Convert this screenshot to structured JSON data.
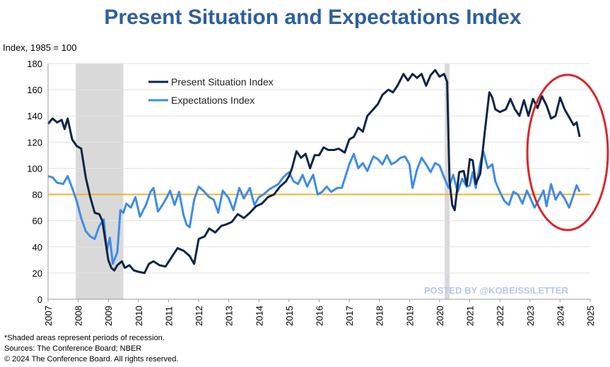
{
  "chart_data": {
    "type": "line",
    "title": "Present Situation and Expectations Index",
    "ylabel": "Index, 1985 = 100",
    "xlabel": "",
    "ylim": [
      0,
      180
    ],
    "xlim": [
      2007,
      2025
    ],
    "yticks": [
      0,
      20,
      40,
      60,
      80,
      100,
      120,
      140,
      160,
      180
    ],
    "xticks": [
      "2007",
      "2008",
      "2009",
      "2010",
      "2011",
      "2012",
      "2013",
      "2014",
      "2015",
      "2016",
      "2017",
      "2018",
      "2019",
      "2020",
      "2021",
      "2022",
      "2023",
      "2024",
      "2025"
    ],
    "grid": "horizontal",
    "legend": "top-left",
    "reference_line": {
      "y": 80,
      "color": "#f0b030"
    },
    "recessions": [
      {
        "start": 2007.92,
        "end": 2009.5
      },
      {
        "start": 2020.17,
        "end": 2020.33
      }
    ],
    "series": [
      {
        "name": "Present Situation Index",
        "color": "#0f2547",
        "points": [
          [
            2007.0,
            134
          ],
          [
            2007.15,
            138
          ],
          [
            2007.3,
            135
          ],
          [
            2007.45,
            137
          ],
          [
            2007.55,
            130
          ],
          [
            2007.65,
            138
          ],
          [
            2007.8,
            122
          ],
          [
            2007.95,
            117
          ],
          [
            2008.1,
            115
          ],
          [
            2008.25,
            93
          ],
          [
            2008.4,
            78
          ],
          [
            2008.55,
            66
          ],
          [
            2008.7,
            65
          ],
          [
            2008.8,
            60
          ],
          [
            2008.9,
            45
          ],
          [
            2009.0,
            30
          ],
          [
            2009.1,
            24
          ],
          [
            2009.2,
            22
          ],
          [
            2009.3,
            26
          ],
          [
            2009.45,
            29
          ],
          [
            2009.55,
            24
          ],
          [
            2009.7,
            26
          ],
          [
            2009.85,
            22
          ],
          [
            2010.0,
            21
          ],
          [
            2010.2,
            20
          ],
          [
            2010.35,
            27
          ],
          [
            2010.5,
            29
          ],
          [
            2010.7,
            26
          ],
          [
            2010.9,
            25
          ],
          [
            2011.1,
            32
          ],
          [
            2011.3,
            39
          ],
          [
            2011.5,
            37
          ],
          [
            2011.7,
            33
          ],
          [
            2011.85,
            27
          ],
          [
            2012.0,
            46
          ],
          [
            2012.2,
            48
          ],
          [
            2012.35,
            54
          ],
          [
            2012.55,
            51
          ],
          [
            2012.75,
            56
          ],
          [
            2012.9,
            57
          ],
          [
            2013.1,
            59
          ],
          [
            2013.3,
            65
          ],
          [
            2013.5,
            62
          ],
          [
            2013.7,
            66
          ],
          [
            2013.9,
            71
          ],
          [
            2014.1,
            73
          ],
          [
            2014.3,
            78
          ],
          [
            2014.5,
            80
          ],
          [
            2014.7,
            86
          ],
          [
            2014.9,
            90
          ],
          [
            2015.0,
            94
          ],
          [
            2015.1,
            100
          ],
          [
            2015.25,
            113
          ],
          [
            2015.4,
            108
          ],
          [
            2015.55,
            111
          ],
          [
            2015.7,
            100
          ],
          [
            2015.85,
            110
          ],
          [
            2016.0,
            110
          ],
          [
            2016.15,
            116
          ],
          [
            2016.3,
            114
          ],
          [
            2016.5,
            114
          ],
          [
            2016.65,
            115
          ],
          [
            2016.85,
            112
          ],
          [
            2017.0,
            122
          ],
          [
            2017.15,
            124
          ],
          [
            2017.3,
            131
          ],
          [
            2017.45,
            128
          ],
          [
            2017.6,
            140
          ],
          [
            2017.8,
            145
          ],
          [
            2017.95,
            149
          ],
          [
            2018.1,
            156
          ],
          [
            2018.3,
            160
          ],
          [
            2018.45,
            158
          ],
          [
            2018.6,
            163
          ],
          [
            2018.8,
            172
          ],
          [
            2018.95,
            167
          ],
          [
            2019.1,
            172
          ],
          [
            2019.25,
            169
          ],
          [
            2019.4,
            172
          ],
          [
            2019.55,
            163
          ],
          [
            2019.7,
            171
          ],
          [
            2019.85,
            175
          ],
          [
            2020.0,
            170
          ],
          [
            2020.15,
            172
          ],
          [
            2020.25,
            166
          ],
          [
            2020.33,
            90
          ],
          [
            2020.42,
            72
          ],
          [
            2020.5,
            68
          ],
          [
            2020.65,
            97
          ],
          [
            2020.8,
            98
          ],
          [
            2020.9,
            87
          ],
          [
            2021.0,
            107
          ],
          [
            2021.1,
            106
          ],
          [
            2021.2,
            88
          ],
          [
            2021.35,
            96
          ],
          [
            2021.5,
            128
          ],
          [
            2021.65,
            158
          ],
          [
            2021.75,
            154
          ],
          [
            2021.85,
            145
          ],
          [
            2022.0,
            143
          ],
          [
            2022.2,
            145
          ],
          [
            2022.35,
            153
          ],
          [
            2022.5,
            145
          ],
          [
            2022.65,
            140
          ],
          [
            2022.8,
            152
          ],
          [
            2022.95,
            140
          ],
          [
            2023.1,
            153
          ],
          [
            2023.25,
            146
          ],
          [
            2023.4,
            155
          ],
          [
            2023.55,
            148
          ],
          [
            2023.7,
            138
          ],
          [
            2023.85,
            140
          ],
          [
            2024.0,
            154
          ],
          [
            2024.15,
            145
          ],
          [
            2024.3,
            139
          ],
          [
            2024.45,
            133
          ],
          [
            2024.55,
            135
          ],
          [
            2024.65,
            124
          ]
        ]
      },
      {
        "name": "Expectations Index",
        "color": "#3d8ce8",
        "points": [
          [
            2007.0,
            94
          ],
          [
            2007.15,
            93
          ],
          [
            2007.3,
            89
          ],
          [
            2007.5,
            88
          ],
          [
            2007.65,
            94
          ],
          [
            2007.8,
            85
          ],
          [
            2007.95,
            75
          ],
          [
            2008.1,
            62
          ],
          [
            2008.25,
            52
          ],
          [
            2008.4,
            48
          ],
          [
            2008.55,
            46
          ],
          [
            2008.7,
            56
          ],
          [
            2008.85,
            61
          ],
          [
            2008.95,
            37
          ],
          [
            2009.05,
            47
          ],
          [
            2009.15,
            27
          ],
          [
            2009.3,
            36
          ],
          [
            2009.4,
            68
          ],
          [
            2009.5,
            66
          ],
          [
            2009.6,
            73
          ],
          [
            2009.75,
            70
          ],
          [
            2009.9,
            78
          ],
          [
            2010.05,
            63
          ],
          [
            2010.25,
            72
          ],
          [
            2010.4,
            82
          ],
          [
            2010.5,
            85
          ],
          [
            2010.65,
            67
          ],
          [
            2010.8,
            72
          ],
          [
            2010.95,
            78
          ],
          [
            2011.05,
            83
          ],
          [
            2011.2,
            72
          ],
          [
            2011.35,
            82
          ],
          [
            2011.5,
            64
          ],
          [
            2011.6,
            57
          ],
          [
            2011.7,
            55
          ],
          [
            2011.85,
            76
          ],
          [
            2012.0,
            86
          ],
          [
            2012.15,
            83
          ],
          [
            2012.35,
            78
          ],
          [
            2012.5,
            76
          ],
          [
            2012.65,
            66
          ],
          [
            2012.8,
            83
          ],
          [
            2013.0,
            77
          ],
          [
            2013.15,
            68
          ],
          [
            2013.35,
            85
          ],
          [
            2013.5,
            77
          ],
          [
            2013.7,
            85
          ],
          [
            2013.85,
            72
          ],
          [
            2014.0,
            78
          ],
          [
            2014.15,
            80
          ],
          [
            2014.35,
            84
          ],
          [
            2014.5,
            86
          ],
          [
            2014.65,
            88
          ],
          [
            2014.8,
            93
          ],
          [
            2015.0,
            97
          ],
          [
            2015.15,
            90
          ],
          [
            2015.3,
            88
          ],
          [
            2015.45,
            95
          ],
          [
            2015.6,
            86
          ],
          [
            2015.8,
            95
          ],
          [
            2015.95,
            80
          ],
          [
            2016.1,
            82
          ],
          [
            2016.25,
            86
          ],
          [
            2016.4,
            82
          ],
          [
            2016.6,
            85
          ],
          [
            2016.75,
            85
          ],
          [
            2016.85,
            92
          ],
          [
            2017.0,
            103
          ],
          [
            2017.15,
            111
          ],
          [
            2017.3,
            100
          ],
          [
            2017.45,
            104
          ],
          [
            2017.6,
            98
          ],
          [
            2017.8,
            109
          ],
          [
            2017.95,
            107
          ],
          [
            2018.1,
            103
          ],
          [
            2018.25,
            110
          ],
          [
            2018.4,
            103
          ],
          [
            2018.55,
            105
          ],
          [
            2018.7,
            108
          ],
          [
            2018.85,
            109
          ],
          [
            2019.0,
            103
          ],
          [
            2019.1,
            85
          ],
          [
            2019.25,
            99
          ],
          [
            2019.4,
            108
          ],
          [
            2019.55,
            103
          ],
          [
            2019.7,
            97
          ],
          [
            2019.85,
            104
          ],
          [
            2020.0,
            102
          ],
          [
            2020.15,
            93
          ],
          [
            2020.3,
            85
          ],
          [
            2020.45,
            95
          ],
          [
            2020.6,
            82
          ],
          [
            2020.75,
            92
          ],
          [
            2020.9,
            86
          ],
          [
            2021.0,
            87
          ],
          [
            2021.1,
            97
          ],
          [
            2021.2,
            85
          ],
          [
            2021.35,
            104
          ],
          [
            2021.45,
            113
          ],
          [
            2021.6,
            100
          ],
          [
            2021.75,
            103
          ],
          [
            2021.85,
            90
          ],
          [
            2022.0,
            82
          ],
          [
            2022.15,
            75
          ],
          [
            2022.3,
            72
          ],
          [
            2022.45,
            82
          ],
          [
            2022.6,
            80
          ],
          [
            2022.75,
            73
          ],
          [
            2022.9,
            83
          ],
          [
            2023.0,
            78
          ],
          [
            2023.15,
            70
          ],
          [
            2023.3,
            76
          ],
          [
            2023.45,
            83
          ],
          [
            2023.55,
            71
          ],
          [
            2023.7,
            88
          ],
          [
            2023.85,
            76
          ],
          [
            2024.0,
            82
          ],
          [
            2024.15,
            77
          ],
          [
            2024.3,
            70
          ],
          [
            2024.45,
            80
          ],
          [
            2024.55,
            87
          ],
          [
            2024.65,
            82
          ]
        ]
      }
    ]
  },
  "watermark": "POSTED BY @KOBEISSILETTER",
  "footnotes": [
    "*Shaded areas represent periods of recession.",
    "Sources: The Conference Board;  NBER",
    "© 2024 The Conference Board. All rights reserved."
  ],
  "annotation": {
    "shape": "ellipse",
    "color": "#d9262c"
  }
}
